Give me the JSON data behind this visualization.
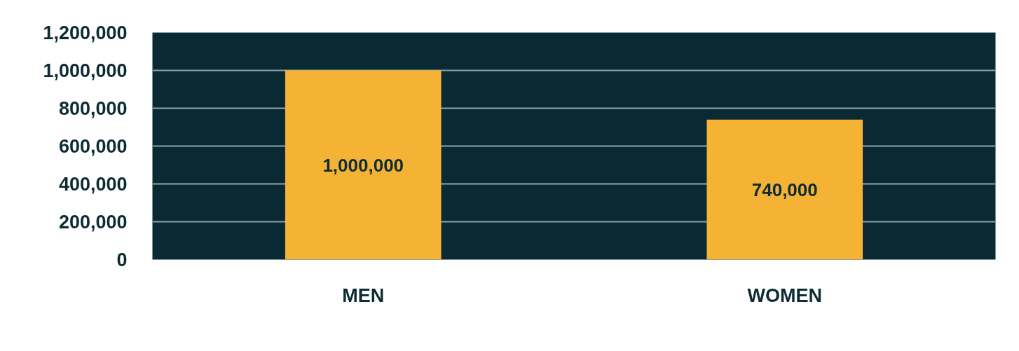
{
  "chart_data": {
    "type": "bar",
    "categories": [
      "MEN",
      "WOMEN"
    ],
    "values": [
      1000000,
      740000
    ],
    "color": "#f5b335",
    "ylim": [
      0,
      1200000
    ],
    "yticks": [
      {
        "value": 0,
        "label": "0"
      },
      {
        "value": 200000,
        "label": "200,000"
      },
      {
        "value": 400000,
        "label": "400,000"
      },
      {
        "value": 600000,
        "label": "600,000"
      },
      {
        "value": 800000,
        "label": "800,000"
      },
      {
        "value": 1000000,
        "label": "1,000,000"
      },
      {
        "value": 1200000,
        "label": "1,200,000"
      }
    ],
    "value_labels": [
      "1,000,000",
      "740,000"
    ],
    "grid": "y"
  }
}
